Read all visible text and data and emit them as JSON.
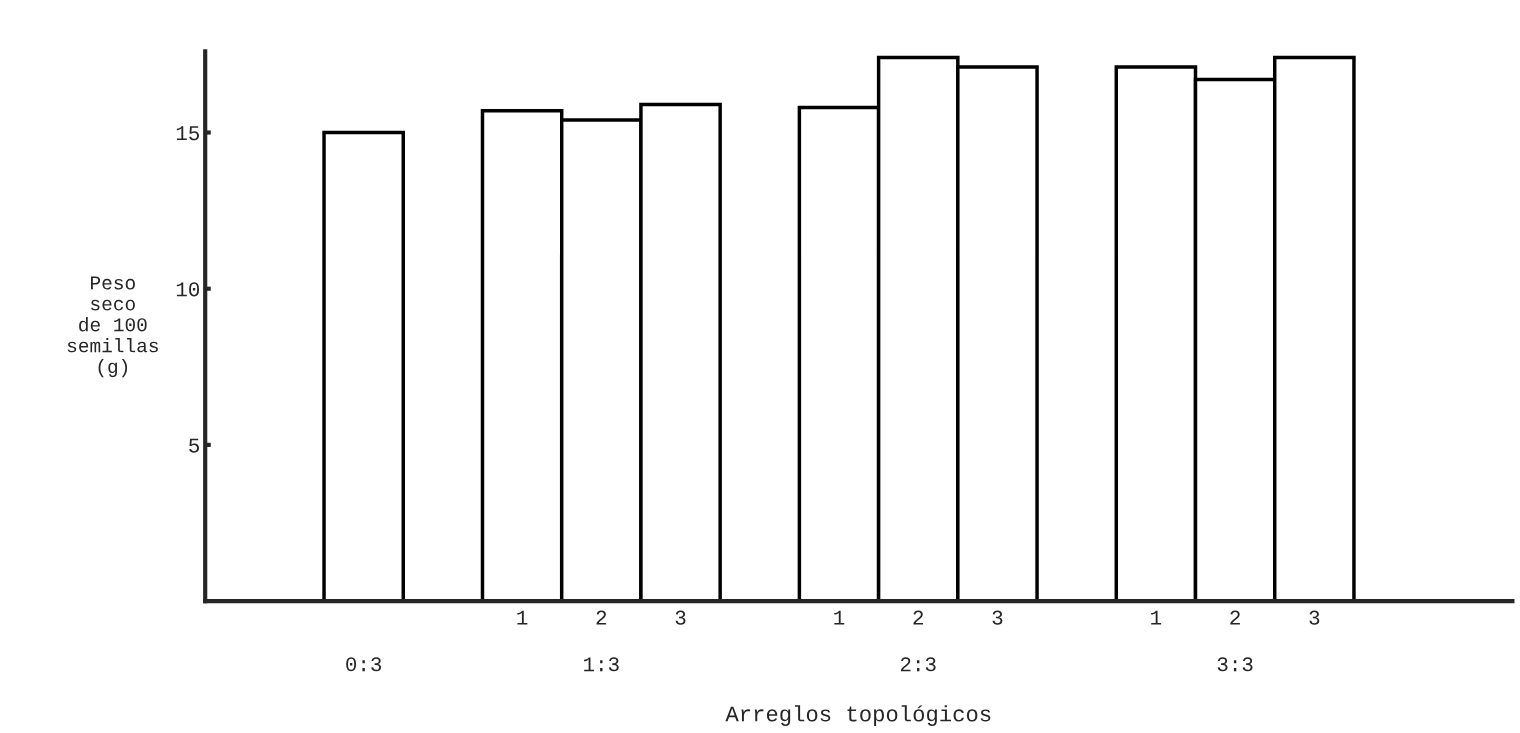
{
  "chart_data": {
    "type": "bar",
    "xlabel": "Arreglos topológicos",
    "ylabel": "Peso\nseco\nde 100\nsemillas\n(g)",
    "categories": [
      null,
      "1",
      "2",
      "3",
      "1",
      "2",
      "3",
      "1",
      "2",
      "3"
    ],
    "values": [
      15.0,
      15.7,
      15.4,
      15.9,
      15.8,
      17.4,
      17.1,
      17.1,
      16.7,
      17.4
    ],
    "color": "#ffffff",
    "annotations": [
      "0:3",
      "1:3",
      "2:3",
      "3:3"
    ],
    "ylim": [
      0,
      17.6
    ],
    "yticks": [
      5,
      10,
      15
    ],
    "grid": false,
    "legend": false
  }
}
